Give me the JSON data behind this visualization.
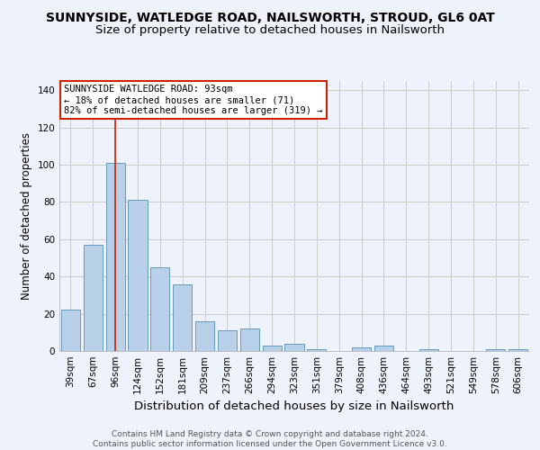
{
  "title1": "SUNNYSIDE, WATLEDGE ROAD, NAILSWORTH, STROUD, GL6 0AT",
  "title2": "Size of property relative to detached houses in Nailsworth",
  "xlabel": "Distribution of detached houses by size in Nailsworth",
  "ylabel": "Number of detached properties",
  "categories": [
    "39sqm",
    "67sqm",
    "96sqm",
    "124sqm",
    "152sqm",
    "181sqm",
    "209sqm",
    "237sqm",
    "266sqm",
    "294sqm",
    "323sqm",
    "351sqm",
    "379sqm",
    "408sqm",
    "436sqm",
    "464sqm",
    "493sqm",
    "521sqm",
    "549sqm",
    "578sqm",
    "606sqm"
  ],
  "values": [
    22,
    57,
    101,
    81,
    45,
    36,
    16,
    11,
    12,
    3,
    4,
    1,
    0,
    2,
    3,
    0,
    1,
    0,
    0,
    1,
    1
  ],
  "bar_color": "#b8d0e8",
  "bar_edge_color": "#6699bb",
  "vline_x_index": 2,
  "vline_color": "#cc2200",
  "annotation_text": "SUNNYSIDE WATLEDGE ROAD: 93sqm\n← 18% of detached houses are smaller (71)\n82% of semi-detached houses are larger (319) →",
  "annotation_box_color": "white",
  "annotation_box_edge_color": "#cc2200",
  "ylim": [
    0,
    145
  ],
  "yticks": [
    0,
    20,
    40,
    60,
    80,
    100,
    120,
    140
  ],
  "grid_color": "#cccccc",
  "background_color": "#eef2fa",
  "footer_text": "Contains HM Land Registry data © Crown copyright and database right 2024.\nContains public sector information licensed under the Open Government Licence v3.0.",
  "title1_fontsize": 10,
  "title2_fontsize": 9.5,
  "xlabel_fontsize": 9.5,
  "ylabel_fontsize": 8.5,
  "tick_fontsize": 7.5,
  "ann_fontsize": 7.5,
  "footer_fontsize": 6.5
}
